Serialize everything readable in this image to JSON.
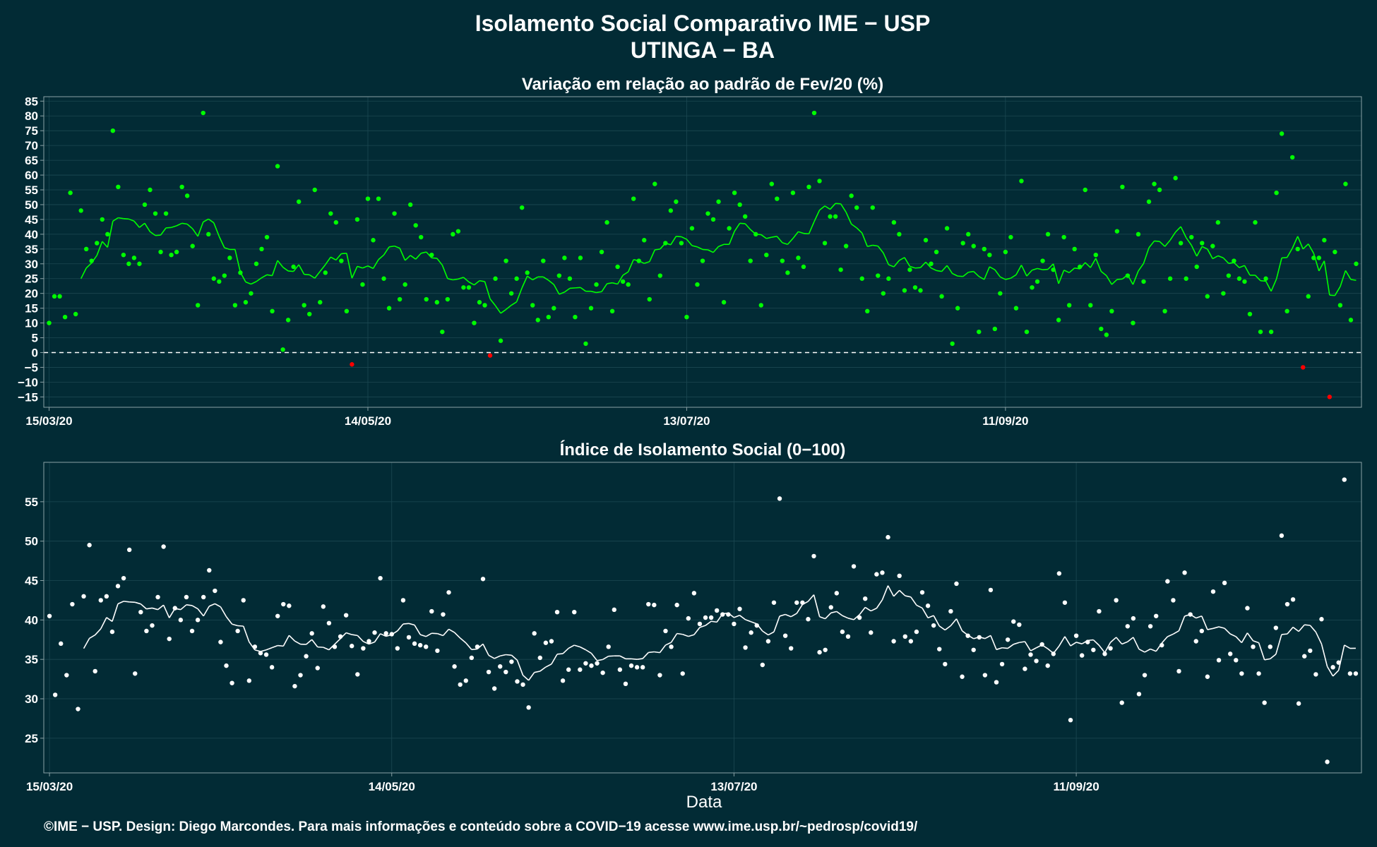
{
  "title": "Isolamento Social Comparativo IME − USP",
  "subtitle": "UTINGA − BA",
  "footer": "©IME − USP. Design: Diego Marcondes. Para mais informações e conteúdo sobre a COVID−19 acesse www.ime.usp.br/~pedrosp/covid19/",
  "colors": {
    "background": "#022b35",
    "panel_border": "#8aa1a5",
    "grid": "#1c4852",
    "positive": "#00ff00",
    "negative": "#ff0000",
    "index": "#ffffff"
  },
  "chart_data": [
    {
      "type": "scatter",
      "title": "Variação em relação ao padrão de Fev/20 (%)",
      "xlabel": "",
      "ylabel": "",
      "x_start": "15/03/20",
      "x_ticks": [
        "15/03/20",
        "14/05/20",
        "13/07/20",
        "11/09/20"
      ],
      "y_ticks": [
        85,
        80,
        75,
        70,
        65,
        60,
        55,
        50,
        45,
        40,
        35,
        30,
        25,
        20,
        15,
        10,
        5,
        0,
        -5,
        -10,
        -15
      ],
      "ylim": [
        -18.5,
        86.5
      ],
      "reference_line": 0,
      "points": [
        10,
        19,
        19,
        12,
        54,
        13,
        48,
        35,
        31,
        37,
        45,
        40,
        75,
        56,
        33,
        30,
        32,
        30,
        50,
        55,
        47,
        34,
        47,
        33,
        34,
        56,
        53,
        36,
        16,
        81,
        40,
        25,
        24,
        26,
        32,
        16,
        27,
        17,
        20,
        30,
        35,
        39,
        14,
        63,
        1,
        11,
        29,
        51,
        16,
        13,
        55,
        17,
        27,
        47,
        44,
        31,
        14,
        -4,
        45,
        23,
        52,
        38,
        52,
        25,
        15,
        47,
        18,
        23,
        50,
        43,
        39,
        18,
        33,
        17,
        7,
        18,
        40,
        41,
        22,
        22,
        10,
        17,
        16,
        -1,
        25,
        4,
        31,
        20,
        25,
        49,
        27,
        16,
        11,
        31,
        12,
        15,
        26,
        32,
        25,
        12,
        32,
        3,
        15,
        23,
        34,
        44,
        14,
        29,
        24,
        23,
        52,
        31,
        38,
        18,
        57,
        26,
        37,
        48,
        51,
        37,
        12,
        42,
        23,
        31,
        47,
        45,
        51,
        17,
        42,
        54,
        50,
        46,
        31,
        40,
        16,
        33,
        57,
        52,
        31,
        27,
        54,
        32,
        29,
        56,
        81,
        58,
        37,
        46,
        46,
        28,
        36,
        53,
        49,
        25,
        14,
        49,
        26,
        20,
        25,
        44,
        40,
        21,
        28,
        22,
        21,
        38,
        30,
        34,
        19,
        42,
        3,
        15,
        37,
        40,
        36,
        7,
        35,
        33,
        8,
        20,
        34,
        39,
        15,
        58,
        7,
        22,
        24,
        31,
        40,
        28,
        11,
        39,
        16,
        35,
        29,
        55,
        16,
        33,
        8,
        6,
        14,
        41,
        56,
        26,
        10,
        40,
        24,
        51,
        57,
        55,
        14,
        25,
        59,
        37,
        25,
        39,
        29,
        37,
        19,
        36,
        44,
        20,
        26,
        31,
        25,
        24,
        13,
        44,
        7,
        25,
        7,
        54,
        74,
        14,
        66,
        35,
        -5,
        19,
        32,
        32,
        38,
        -15,
        34,
        16,
        57,
        11,
        30
      ],
      "trend_window": 7
    },
    {
      "type": "scatter",
      "title": "Índice de Isolamento Social (0−100)",
      "xlabel": "Data",
      "ylabel": "",
      "x_start": "15/03/20",
      "x_ticks": [
        "15/03/20",
        "14/05/20",
        "13/07/20",
        "11/09/20"
      ],
      "y_ticks": [
        55,
        50,
        45,
        40,
        35,
        30,
        25
      ],
      "ylim": [
        20.6,
        60
      ],
      "points": [
        40.5,
        30.5,
        37,
        33,
        42,
        28.7,
        43,
        49.5,
        33.5,
        42.5,
        43,
        38.5,
        44.3,
        45.3,
        48.9,
        33.2,
        41,
        38.6,
        39.3,
        42.9,
        49.3,
        37.6,
        41.5,
        40,
        42.9,
        38.6,
        40,
        42.9,
        46.3,
        43.7,
        37.2,
        34.2,
        32,
        38.6,
        42.5,
        32.3,
        36.6,
        35.8,
        35.6,
        34,
        40.5,
        42,
        41.8,
        31.6,
        33,
        35.4,
        38.3,
        33.9,
        41.7,
        39.6,
        36.6,
        37.9,
        40.6,
        36.7,
        33.1,
        36.4,
        37.3,
        38.4,
        45.3,
        38.3,
        38.2,
        36.4,
        42.5,
        37.8,
        37,
        36.8,
        36.6,
        41.1,
        36.1,
        40.7,
        43.5,
        34.1,
        31.8,
        32.3,
        35.2,
        36.6,
        45.2,
        33.4,
        31.3,
        34.1,
        33.4,
        34.7,
        32.2,
        31.8,
        28.9,
        38.3,
        35.2,
        37.1,
        37.3,
        41,
        32.3,
        33.7,
        41,
        33.7,
        34.5,
        34.2,
        34.5,
        33.3,
        36.6,
        41.3,
        33.7,
        31.9,
        34.2,
        34,
        34,
        42,
        41.9,
        33,
        38.6,
        36.6,
        41.9,
        33.2,
        40.2,
        43.4,
        39.5,
        40.3,
        40.3,
        41.2,
        40.7,
        40.7,
        39.5,
        41.4,
        36.5,
        38.4,
        39.3,
        34.3,
        37.3,
        42.2,
        55.4,
        38,
        36.4,
        42.2,
        42.2,
        40.1,
        48.1,
        35.9,
        36.2,
        41.6,
        43.4,
        38.5,
        37.9,
        46.8,
        40.3,
        42.7,
        38.4,
        45.8,
        46,
        50.5,
        37.3,
        45.6,
        37.9,
        37.3,
        38.5,
        43.5,
        41.8,
        39.3,
        36.3,
        34.4,
        41.1,
        44.6,
        32.8,
        38,
        36.2,
        37.8,
        33,
        43.8,
        32.1,
        34.4,
        37.5,
        39.8,
        39.4,
        33.8,
        35.6,
        34.8,
        36.9,
        34.2,
        35.7,
        45.9,
        42.2,
        27.3,
        38,
        35.5,
        37.2,
        36.2,
        41.1,
        35.7,
        36.4,
        42.5,
        29.5,
        39.2,
        40.2,
        30.6,
        33,
        39.2,
        40.5,
        36.8,
        44.9,
        42.5,
        33.5,
        46,
        40.7,
        37.3,
        38.6,
        32.8,
        43.6,
        34.9,
        44.7,
        35.7,
        34.9,
        33.2,
        41.5,
        36.6,
        33.2,
        29.5,
        36.6,
        39,
        50.7,
        42,
        42.6,
        29.4,
        35.4,
        36.1,
        33.1,
        40.1,
        22,
        34,
        34.6,
        57.8,
        33.2,
        33.2
      ],
      "trend_window": 7
    }
  ]
}
